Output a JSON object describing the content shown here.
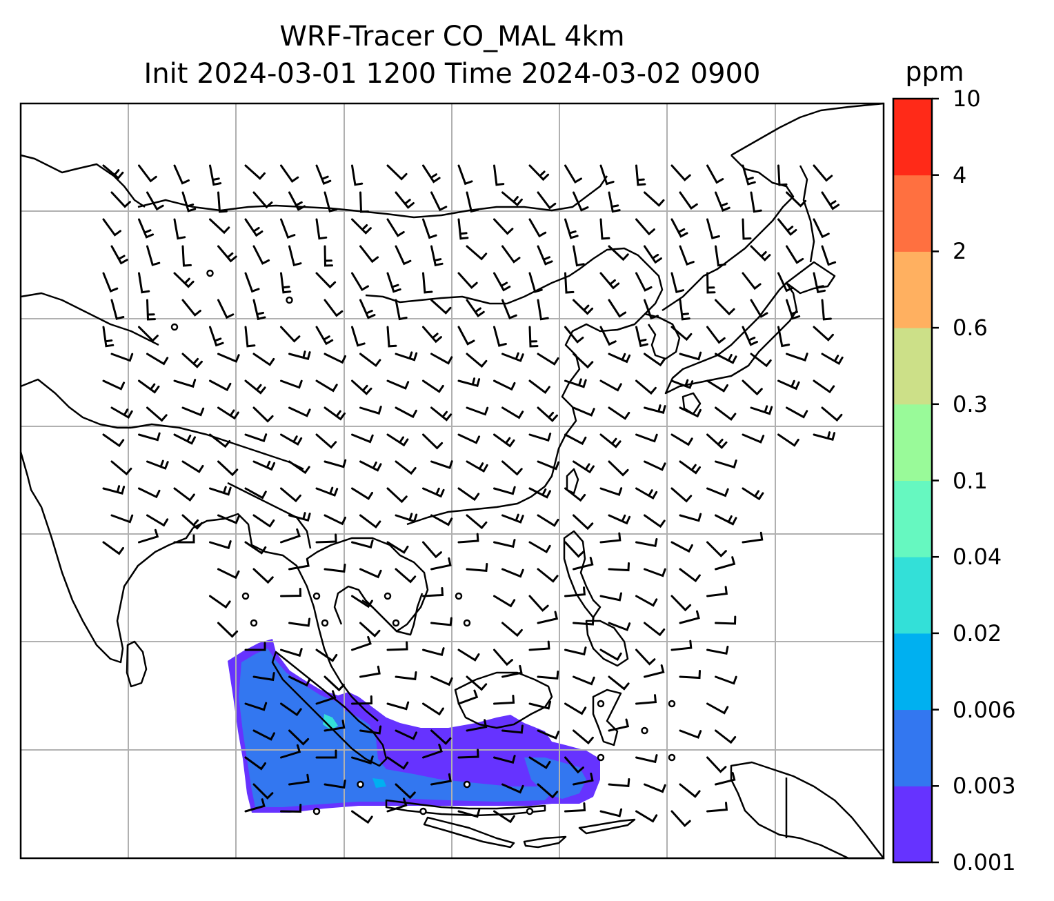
{
  "title": {
    "line1": "WRF-Tracer CO_MAL 4km",
    "line2": "Init 2024-03-01 1200 Time 2024-03-02 0900"
  },
  "colorbar": {
    "units": "ppm",
    "tick_labels": [
      "0.001",
      "0.003",
      "0.006",
      "0.02",
      "0.04",
      "0.1",
      "0.3",
      "0.6",
      "2",
      "4",
      "10"
    ],
    "bins": [
      {
        "from": "0.001",
        "to": "0.003",
        "color": "#6633ff"
      },
      {
        "from": "0.003",
        "to": "0.006",
        "color": "#3377f0"
      },
      {
        "from": "0.006",
        "to": "0.02",
        "color": "#00b0f0"
      },
      {
        "from": "0.02",
        "to": "0.04",
        "color": "#33e0d8"
      },
      {
        "from": "0.04",
        "to": "0.1",
        "color": "#66f8c0"
      },
      {
        "from": "0.1",
        "to": "0.3",
        "color": "#99fa99"
      },
      {
        "from": "0.3",
        "to": "0.6",
        "color": "#cce088"
      },
      {
        "from": "0.6",
        "to": "2",
        "color": "#ffb060"
      },
      {
        "from": "2",
        "to": "4",
        "color": "#ff7040"
      },
      {
        "from": "4",
        "to": "10",
        "color": "#ff2a18"
      }
    ]
  },
  "map": {
    "background": "#ffffff",
    "coastline_color": "#000000",
    "gridline_color": "#b0b0b0",
    "barb_color": "#000000",
    "tracer_main_color": "#3377f0",
    "tracer_edge_color": "#6633ff"
  }
}
